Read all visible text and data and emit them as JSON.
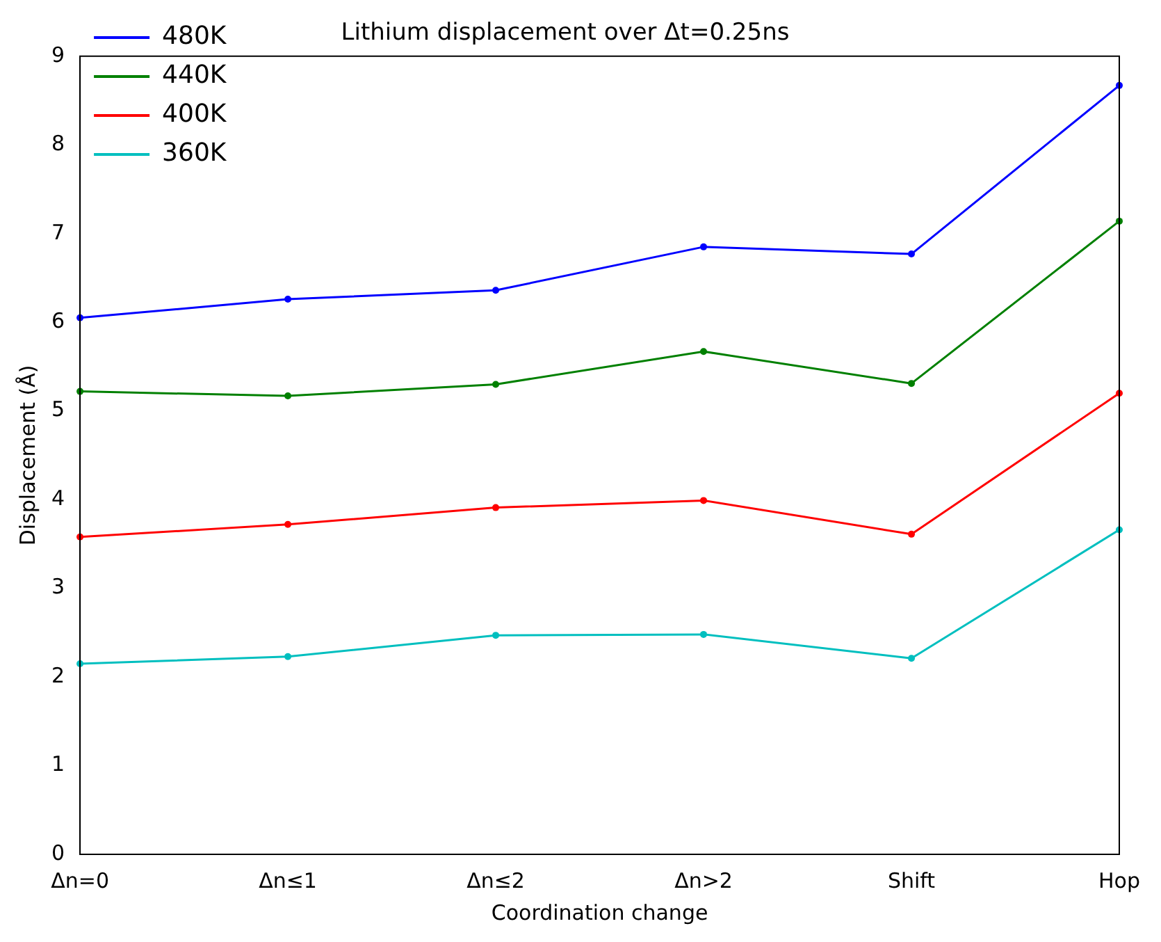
{
  "chart_data": {
    "type": "line",
    "title": "Lithium displacement over Δt=0.25ns",
    "xlabel": "Coordination change",
    "ylabel": "Displacement (Å)",
    "categories": [
      "Δn=0",
      "Δn≤1",
      "Δn≤2",
      "Δn>2",
      "Shift",
      "Hop"
    ],
    "series": [
      {
        "name": "480K",
        "color": "#0000ff",
        "values": [
          6.05,
          6.26,
          6.36,
          6.85,
          6.77,
          8.67
        ]
      },
      {
        "name": "440K",
        "color": "#008000",
        "values": [
          5.22,
          5.17,
          5.3,
          5.67,
          5.31,
          7.14
        ]
      },
      {
        "name": "400K",
        "color": "#ff0000",
        "values": [
          3.58,
          3.72,
          3.91,
          3.99,
          3.61,
          5.2
        ]
      },
      {
        "name": "360K",
        "color": "#00bfbf",
        "values": [
          2.15,
          2.23,
          2.47,
          2.48,
          2.21,
          3.66
        ]
      }
    ],
    "ylim": [
      0,
      9
    ],
    "yticks": [
      0,
      1,
      2,
      3,
      4,
      5,
      6,
      7,
      8,
      9
    ],
    "grid": false,
    "legend": "top left",
    "marker": "circle",
    "line_style": "solid"
  }
}
